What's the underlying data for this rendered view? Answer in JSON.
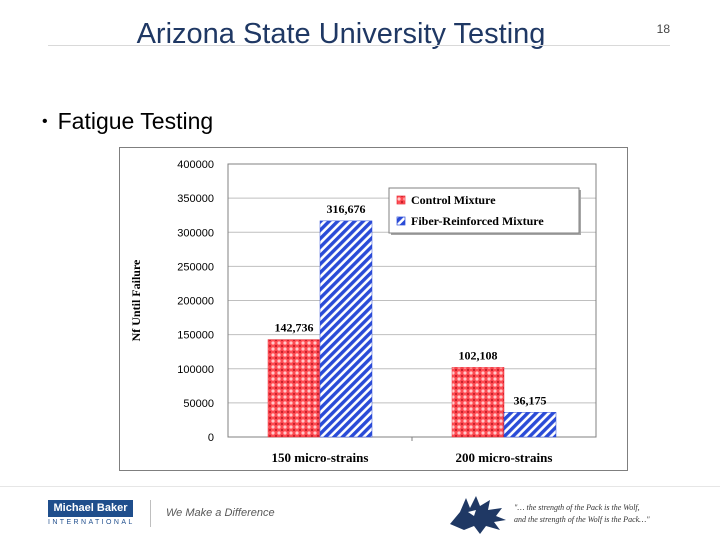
{
  "slide": {
    "title": "Arizona State University Testing",
    "number": "18",
    "bullet": "Fatigue Testing"
  },
  "footer": {
    "logo_line1": "Michael Baker",
    "logo_line2": "INTERNATIONAL",
    "tagline": "We Make a Difference",
    "quote_line1": "\"… the strength of the Pack is the Wolf,",
    "quote_line2": "and the strength of the Wolf is the Pack…\""
  },
  "chart_data": {
    "type": "bar",
    "title": "",
    "xlabel": "",
    "ylabel": "Nf Until Failure",
    "ylim": [
      0,
      400000
    ],
    "yticks": [
      0,
      50000,
      100000,
      150000,
      200000,
      250000,
      300000,
      350000,
      400000
    ],
    "ytick_labels": [
      "0",
      "50000",
      "100000",
      "150000",
      "200000",
      "250000",
      "300000",
      "350000",
      "400000"
    ],
    "grid": true,
    "legend_position": "top-right",
    "categories": [
      "150 micro-strains",
      "200 micro-strains"
    ],
    "series": [
      {
        "name": "Control Mixture",
        "values": [
          142736,
          102108
        ],
        "labels": [
          "142,736",
          "102,108"
        ],
        "color": "#e8303a",
        "pattern": "red-dots"
      },
      {
        "name": "Fiber-Reinforced Mixture",
        "values": [
          316676,
          36175
        ],
        "labels": [
          "316,676",
          "36,175"
        ],
        "color": "#2a4bd7",
        "pattern": "blue-diagonal"
      }
    ]
  }
}
